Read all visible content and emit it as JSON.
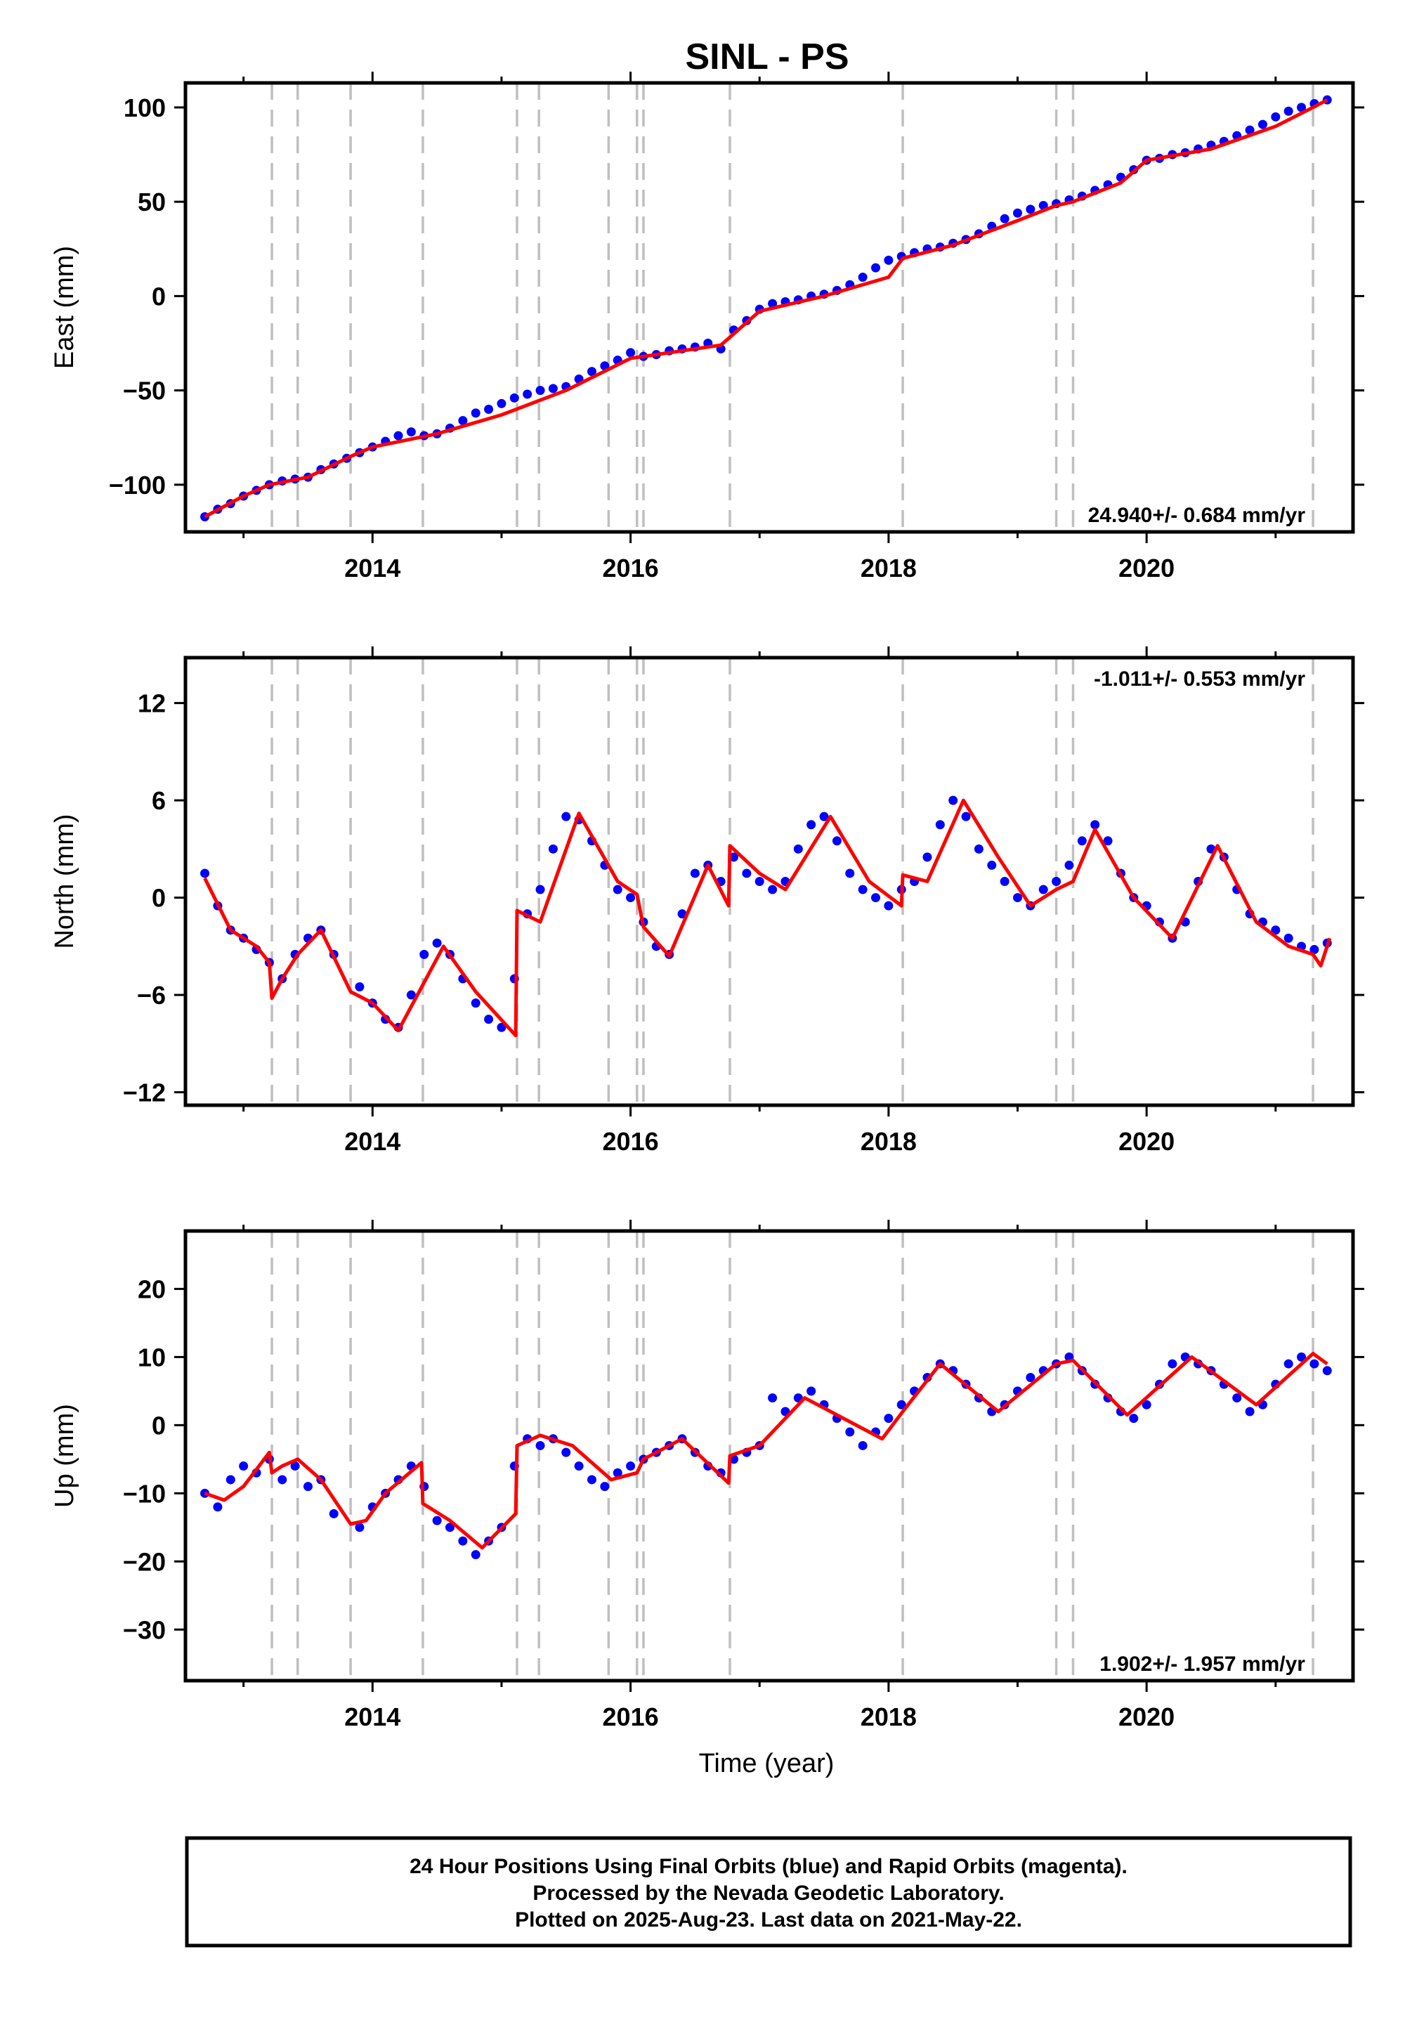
{
  "title": "SINL - PS",
  "footer": {
    "line1": "24 Hour Positions Using Final Orbits (blue) and Rapid Orbits (magenta).",
    "line2": "Processed by the Nevada Geodetic Laboratory.",
    "line3": "Plotted on 2025-Aug-23. Last data on 2021-May-22."
  },
  "colors": {
    "final_points": "#0000ff",
    "model": "#ff0000",
    "event_lines": "#bfbfbf",
    "frame": "#000000"
  },
  "chart_data": [
    {
      "type": "scatter",
      "component": "East",
      "ylabel": "East (mm)",
      "xlabel": "",
      "xlim": [
        2012.55,
        2021.6
      ],
      "ylim": [
        -125,
        113
      ],
      "xticks": [
        2014,
        2016,
        2018,
        2020
      ],
      "xtick_labels": [
        "2014",
        "2016",
        "2018",
        "2020"
      ],
      "yticks": [
        -100,
        -50,
        0,
        50,
        100
      ],
      "ytick_labels": [
        "−100",
        "−50",
        "0",
        "50",
        "100"
      ],
      "rate_label": "24.940+/- 0.684 mm/yr",
      "rate_position": "bottom-right",
      "event_lines": [
        2013.22,
        2013.42,
        2013.83,
        2014.39,
        2015.12,
        2015.29,
        2015.83,
        2016.05,
        2016.1,
        2016.77,
        2018.11,
        2019.3,
        2019.43,
        2021.29
      ],
      "model": {
        "x": [
          2012.7,
          2013.0,
          2013.2,
          2013.5,
          2013.83,
          2014.0,
          2014.5,
          2015.0,
          2015.5,
          2016.0,
          2016.1,
          2016.7,
          2016.8,
          2017.0,
          2017.5,
          2018.0,
          2018.11,
          2018.5,
          2019.0,
          2019.3,
          2019.43,
          2019.8,
          2020.0,
          2020.5,
          2021.0,
          2021.29,
          2021.4
        ],
        "y": [
          -117,
          -106,
          -100,
          -96,
          -85,
          -80,
          -73,
          -63,
          -50,
          -33,
          -32,
          -26,
          -20,
          -8,
          0,
          10,
          20,
          27,
          40,
          48,
          50,
          60,
          72,
          78,
          90,
          100,
          104
        ]
      },
      "series": [
        {
          "name": "Final Orbits",
          "points": {
            "x": [
              2012.7,
              2012.8,
              2012.9,
              2013.0,
              2013.1,
              2013.2,
              2013.3,
              2013.4,
              2013.5,
              2013.6,
              2013.7,
              2013.8,
              2013.9,
              2014.0,
              2014.1,
              2014.2,
              2014.3,
              2014.4,
              2014.5,
              2014.6,
              2014.7,
              2014.8,
              2014.9,
              2015.0,
              2015.1,
              2015.2,
              2015.3,
              2015.4,
              2015.5,
              2015.6,
              2015.7,
              2015.8,
              2015.9,
              2016.0,
              2016.1,
              2016.2,
              2016.3,
              2016.4,
              2016.5,
              2016.6,
              2016.7,
              2016.8,
              2016.9,
              2017.0,
              2017.1,
              2017.2,
              2017.3,
              2017.4,
              2017.5,
              2017.6,
              2017.7,
              2017.8,
              2017.9,
              2018.0,
              2018.1,
              2018.2,
              2018.3,
              2018.4,
              2018.5,
              2018.6,
              2018.7,
              2018.8,
              2018.9,
              2019.0,
              2019.1,
              2019.2,
              2019.3,
              2019.4,
              2019.5,
              2019.6,
              2019.7,
              2019.8,
              2019.9,
              2020.0,
              2020.1,
              2020.2,
              2020.3,
              2020.4,
              2020.5,
              2020.6,
              2020.7,
              2020.8,
              2020.9,
              2021.0,
              2021.1,
              2021.2,
              2021.3,
              2021.4
            ],
            "y": [
              -117,
              -113,
              -110,
              -106,
              -103,
              -100,
              -98,
              -97,
              -96,
              -92,
              -89,
              -86,
              -83,
              -80,
              -77,
              -74,
              -72,
              -74,
              -73,
              -70,
              -66,
              -62,
              -60,
              -57,
              -54,
              -52,
              -50,
              -49,
              -48,
              -44,
              -40,
              -37,
              -34,
              -30,
              -32,
              -31,
              -29,
              -28,
              -27,
              -25,
              -28,
              -18,
              -13,
              -7,
              -4,
              -3,
              -2,
              0,
              1,
              3,
              6,
              10,
              15,
              19,
              21,
              23,
              25,
              26,
              28,
              30,
              33,
              37,
              41,
              44,
              46,
              48,
              49,
              51,
              53,
              56,
              59,
              63,
              67,
              72,
              73,
              75,
              76,
              78,
              80,
              82,
              85,
              88,
              91,
              95,
              98,
              100,
              102,
              104
            ]
          }
        }
      ]
    },
    {
      "type": "scatter",
      "component": "North",
      "ylabel": "North (mm)",
      "xlabel": "",
      "xlim": [
        2012.55,
        2021.6
      ],
      "ylim": [
        -12.8,
        14.8
      ],
      "xticks": [
        2014,
        2016,
        2018,
        2020
      ],
      "xtick_labels": [
        "2014",
        "2016",
        "2018",
        "2020"
      ],
      "yticks": [
        -12,
        -6,
        0,
        6,
        12
      ],
      "ytick_labels": [
        "−12",
        "−6",
        "0",
        "6",
        "12"
      ],
      "rate_label": "-1.011+/- 0.553 mm/yr",
      "rate_position": "top-right",
      "event_lines": [
        2013.22,
        2013.42,
        2013.83,
        2014.39,
        2015.12,
        2015.29,
        2015.83,
        2016.05,
        2016.1,
        2016.77,
        2018.11,
        2019.3,
        2019.43,
        2021.29
      ],
      "model": {
        "x": [
          2012.7,
          2012.9,
          2013.1,
          2013.2,
          2013.22,
          2013.3,
          2013.42,
          2013.6,
          2013.83,
          2014.0,
          2014.2,
          2014.55,
          2014.8,
          2015.11,
          2015.12,
          2015.3,
          2015.6,
          2015.9,
          2016.05,
          2016.1,
          2016.3,
          2016.6,
          2016.76,
          2016.77,
          2017.0,
          2017.2,
          2017.55,
          2017.85,
          2018.1,
          2018.11,
          2018.3,
          2018.58,
          2018.85,
          2019.1,
          2019.3,
          2019.43,
          2019.6,
          2019.9,
          2020.2,
          2020.55,
          2020.85,
          2021.1,
          2021.29,
          2021.35,
          2021.42
        ],
        "y": [
          1.2,
          -2.0,
          -3.0,
          -4.0,
          -6.2,
          -5.0,
          -3.5,
          -2.0,
          -5.8,
          -6.5,
          -8.2,
          -3.0,
          -5.8,
          -8.5,
          -0.8,
          -1.5,
          5.2,
          1.0,
          0.2,
          -1.8,
          -3.6,
          2.0,
          -0.5,
          3.2,
          1.5,
          0.5,
          5.0,
          1.0,
          -0.5,
          1.4,
          1.0,
          6.0,
          2.5,
          -0.5,
          0.5,
          1.0,
          4.2,
          0.0,
          -2.5,
          3.2,
          -1.5,
          -3.0,
          -3.5,
          -4.2,
          -2.5
        ]
      },
      "series": [
        {
          "name": "Final Orbits",
          "points": {
            "x": [
              2012.7,
              2012.8,
              2012.9,
              2013.0,
              2013.1,
              2013.2,
              2013.3,
              2013.4,
              2013.5,
              2013.6,
              2013.7,
              2013.9,
              2014.0,
              2014.1,
              2014.2,
              2014.3,
              2014.4,
              2014.5,
              2014.6,
              2014.7,
              2014.8,
              2014.9,
              2015.0,
              2015.1,
              2015.2,
              2015.3,
              2015.4,
              2015.5,
              2015.6,
              2015.7,
              2015.8,
              2015.9,
              2016.0,
              2016.1,
              2016.2,
              2016.3,
              2016.4,
              2016.5,
              2016.6,
              2016.7,
              2016.8,
              2016.9,
              2017.0,
              2017.1,
              2017.2,
              2017.3,
              2017.4,
              2017.5,
              2017.6,
              2017.7,
              2017.8,
              2017.9,
              2018.0,
              2018.1,
              2018.2,
              2018.3,
              2018.4,
              2018.5,
              2018.6,
              2018.7,
              2018.8,
              2018.9,
              2019.0,
              2019.1,
              2019.2,
              2019.3,
              2019.4,
              2019.5,
              2019.6,
              2019.7,
              2019.8,
              2019.9,
              2020.0,
              2020.1,
              2020.2,
              2020.3,
              2020.4,
              2020.5,
              2020.6,
              2020.7,
              2020.8,
              2020.9,
              2021.0,
              2021.1,
              2021.2,
              2021.3,
              2021.4
            ],
            "y": [
              1.5,
              -0.5,
              -2.0,
              -2.5,
              -3.2,
              -4.0,
              -5.0,
              -3.5,
              -2.5,
              -2.0,
              -3.5,
              -5.5,
              -6.5,
              -7.5,
              -8.0,
              -6.0,
              -3.5,
              -2.8,
              -3.5,
              -5.0,
              -6.5,
              -7.5,
              -8.0,
              -5.0,
              -1.0,
              0.5,
              3.0,
              5.0,
              4.8,
              3.5,
              2.0,
              0.5,
              0.0,
              -1.5,
              -3.0,
              -3.5,
              -1.0,
              1.5,
              2.0,
              1.0,
              2.5,
              1.5,
              1.0,
              0.5,
              1.0,
              3.0,
              4.5,
              5.0,
              3.5,
              1.5,
              0.5,
              0.0,
              -0.5,
              0.5,
              1.0,
              2.5,
              4.5,
              6.0,
              5.0,
              3.0,
              2.0,
              1.0,
              0.0,
              -0.5,
              0.5,
              1.0,
              2.0,
              3.5,
              4.5,
              3.5,
              1.5,
              0.0,
              -0.5,
              -1.5,
              -2.5,
              -1.5,
              1.0,
              3.0,
              2.5,
              0.5,
              -1.0,
              -1.5,
              -2.0,
              -2.5,
              -3.0,
              -3.2,
              -2.8
            ]
          }
        }
      ]
    },
    {
      "type": "scatter",
      "component": "Up",
      "ylabel": "Up (mm)",
      "xlabel": "Time (year)",
      "xlim": [
        2012.55,
        2021.6
      ],
      "ylim": [
        -37.5,
        28.5
      ],
      "xticks": [
        2014,
        2016,
        2018,
        2020
      ],
      "xtick_labels": [
        "2014",
        "2016",
        "2018",
        "2020"
      ],
      "yticks": [
        -30,
        -20,
        -10,
        0,
        10,
        20
      ],
      "ytick_labels": [
        "−30",
        "−20",
        "−10",
        "0",
        "10",
        "20"
      ],
      "rate_label": "1.902+/- 1.957 mm/yr",
      "rate_position": "bottom-right",
      "event_lines": [
        2013.22,
        2013.42,
        2013.83,
        2014.39,
        2015.12,
        2015.29,
        2015.83,
        2016.05,
        2016.1,
        2016.77,
        2018.11,
        2019.3,
        2019.43,
        2021.29
      ],
      "model": {
        "x": [
          2012.7,
          2012.85,
          2013.0,
          2013.2,
          2013.22,
          2013.3,
          2013.42,
          2013.6,
          2013.83,
          2013.95,
          2014.1,
          2014.38,
          2014.39,
          2014.6,
          2014.85,
          2015.11,
          2015.12,
          2015.3,
          2015.55,
          2015.85,
          2016.05,
          2016.1,
          2016.4,
          2016.76,
          2016.77,
          2017.0,
          2017.35,
          2017.95,
          2018.11,
          2018.4,
          2018.85,
          2019.3,
          2019.43,
          2019.85,
          2020.35,
          2020.85,
          2021.29,
          2021.4
        ],
        "y": [
          -10,
          -11,
          -9,
          -4,
          -7,
          -6,
          -5,
          -8,
          -14.5,
          -14,
          -10,
          -5.5,
          -11.5,
          -14,
          -18,
          -13,
          -3,
          -1.5,
          -3,
          -8,
          -7,
          -5,
          -2,
          -8.5,
          -4.5,
          -3,
          4,
          -2,
          2,
          9,
          2,
          9,
          9.5,
          1.5,
          10,
          3,
          10.5,
          9
        ]
      },
      "series": [
        {
          "name": "Final Orbits",
          "points": {
            "x": [
              2012.7,
              2012.8,
              2012.9,
              2013.0,
              2013.1,
              2013.2,
              2013.3,
              2013.4,
              2013.5,
              2013.6,
              2013.7,
              2013.9,
              2014.0,
              2014.1,
              2014.2,
              2014.3,
              2014.4,
              2014.5,
              2014.6,
              2014.7,
              2014.8,
              2014.9,
              2015.0,
              2015.1,
              2015.2,
              2015.3,
              2015.4,
              2015.5,
              2015.6,
              2015.7,
              2015.8,
              2015.9,
              2016.0,
              2016.1,
              2016.2,
              2016.3,
              2016.4,
              2016.5,
              2016.6,
              2016.7,
              2016.8,
              2016.9,
              2017.0,
              2017.1,
              2017.2,
              2017.3,
              2017.4,
              2017.5,
              2017.6,
              2017.7,
              2017.8,
              2017.9,
              2018.0,
              2018.1,
              2018.2,
              2018.3,
              2018.4,
              2018.5,
              2018.6,
              2018.7,
              2018.8,
              2018.9,
              2019.0,
              2019.1,
              2019.2,
              2019.3,
              2019.4,
              2019.5,
              2019.6,
              2019.7,
              2019.8,
              2019.9,
              2020.0,
              2020.1,
              2020.2,
              2020.3,
              2020.4,
              2020.5,
              2020.6,
              2020.7,
              2020.8,
              2020.9,
              2021.0,
              2021.1,
              2021.2,
              2021.3,
              2021.4
            ],
            "y": [
              -10,
              -12,
              -8,
              -6,
              -7,
              -5,
              -8,
              -6,
              -9,
              -8,
              -13,
              -15,
              -12,
              -10,
              -8,
              -6,
              -9,
              -14,
              -15,
              -17,
              -19,
              -17,
              -15,
              -6,
              -2,
              -3,
              -2,
              -4,
              -6,
              -8,
              -9,
              -7,
              -6,
              -5,
              -4,
              -3,
              -2,
              -4,
              -6,
              -7,
              -5,
              -4,
              -3,
              4,
              2,
              4,
              5,
              3,
              1,
              -1,
              -3,
              -1,
              1,
              3,
              5,
              7,
              9,
              8,
              6,
              4,
              2,
              3,
              5,
              7,
              8,
              9,
              10,
              8,
              6,
              4,
              2,
              1,
              3,
              6,
              9,
              10,
              9,
              8,
              6,
              4,
              2,
              3,
              6,
              9,
              10,
              9,
              8
            ]
          }
        }
      ]
    }
  ]
}
